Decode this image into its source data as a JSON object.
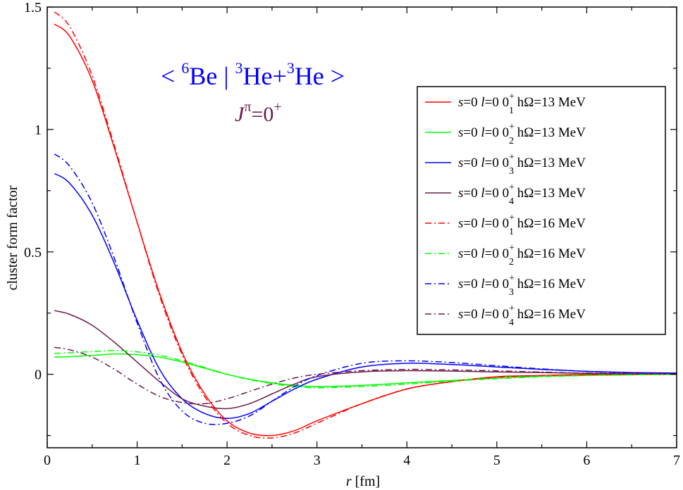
{
  "chart_data": {
    "type": "line",
    "xlabel_var": "r",
    "xlabel_unit": "[fm]",
    "ylabel": "cluster form factor",
    "xlim": [
      0,
      7
    ],
    "ylim": [
      -0.3,
      1.5
    ],
    "x_ticks": [
      "0",
      "1",
      "2",
      "3",
      "4",
      "5",
      "6",
      "7"
    ],
    "y_ticks": [
      {
        "value": 1.5,
        "label": "1.5"
      },
      {
        "value": 1.0,
        "label": "1"
      },
      {
        "value": 0.5,
        "label": "0.5"
      },
      {
        "value": 0.0,
        "label": "0"
      }
    ],
    "grid": false,
    "legend_position": "top-right",
    "annotation": {
      "open": "<",
      "be_mass": "6",
      "be": "Be",
      "bar": "|",
      "he1_mass": "3",
      "he1": "He+",
      "he2_mass": "3",
      "he2": "He",
      "close": ">",
      "j": "J",
      "pi": "π",
      "eq": "=0",
      "plus": "+"
    },
    "x": [
      0.08,
      0.25,
      0.5,
      0.75,
      1.0,
      1.25,
      1.5,
      1.75,
      2.0,
      2.25,
      2.5,
      2.75,
      3.0,
      3.5,
      4.0,
      4.5,
      5.0,
      5.5,
      6.0,
      6.5,
      7.0
    ],
    "series": [
      {
        "legend": {
          "s": "s",
          "s_val": "=0",
          "l": "l",
          "l_val": "=0",
          "state": "0",
          "sup": "+",
          "sub": "1",
          "hw": "hΩ=13 MeV"
        },
        "color": "#ff0000",
        "dash": "solid",
        "values": [
          1.43,
          1.38,
          1.2,
          0.92,
          0.62,
          0.33,
          0.09,
          -0.08,
          -0.19,
          -0.24,
          -0.25,
          -0.23,
          -0.19,
          -0.12,
          -0.06,
          -0.03,
          -0.01,
          -0.005,
          0.0,
          0.0,
          0.0
        ]
      },
      {
        "legend": {
          "s": "s",
          "s_val": "=0",
          "l": "l",
          "l_val": "=0",
          "state": "0",
          "sup": "+",
          "sub": "2",
          "hw": "hΩ=13 MeV"
        },
        "color": "#00ff00",
        "dash": "solid",
        "values": [
          0.07,
          0.072,
          0.077,
          0.083,
          0.08,
          0.07,
          0.05,
          0.025,
          0.0,
          -0.02,
          -0.035,
          -0.045,
          -0.05,
          -0.045,
          -0.035,
          -0.025,
          -0.015,
          -0.008,
          -0.004,
          -0.002,
          0.0
        ]
      },
      {
        "legend": {
          "s": "s",
          "s_val": "=0",
          "l": "l",
          "l_val": "=0",
          "state": "0",
          "sup": "+",
          "sub": "3",
          "hw": "hΩ=13 MeV"
        },
        "color": "#0000ff",
        "dash": "solid",
        "values": [
          0.82,
          0.78,
          0.65,
          0.45,
          0.22,
          0.02,
          -0.1,
          -0.16,
          -0.18,
          -0.16,
          -0.11,
          -0.06,
          -0.02,
          0.03,
          0.045,
          0.04,
          0.03,
          0.02,
          0.012,
          0.007,
          0.005
        ]
      },
      {
        "legend": {
          "s": "s",
          "s_val": "=0",
          "l": "l",
          "l_val": "=0",
          "state": "0",
          "sup": "+",
          "sub": "4",
          "hw": "hΩ=13 MeV"
        },
        "color": "#6b1a4a",
        "dash": "solid",
        "values": [
          0.26,
          0.245,
          0.2,
          0.13,
          0.05,
          -0.03,
          -0.1,
          -0.13,
          -0.14,
          -0.12,
          -0.08,
          -0.04,
          -0.01,
          0.01,
          0.015,
          0.013,
          0.01,
          0.007,
          0.004,
          0.002,
          0.001
        ]
      },
      {
        "legend": {
          "s": "s",
          "s_val": "=0",
          "l": "l",
          "l_val": "=0",
          "state": "0",
          "sup": "+",
          "sub": "1",
          "hw": "hΩ=16 MeV"
        },
        "color": "#ff0000",
        "dash": "dashdot",
        "values": [
          1.48,
          1.42,
          1.22,
          0.93,
          0.62,
          0.32,
          0.08,
          -0.09,
          -0.2,
          -0.25,
          -0.26,
          -0.24,
          -0.2,
          -0.12,
          -0.06,
          -0.03,
          -0.012,
          -0.005,
          -0.002,
          0.0,
          0.0
        ]
      },
      {
        "legend": {
          "s": "s",
          "s_val": "=0",
          "l": "l",
          "l_val": "=0",
          "state": "0",
          "sup": "+",
          "sub": "2",
          "hw": "hΩ=16 MeV"
        },
        "color": "#00ff00",
        "dash": "dashdot",
        "values": [
          0.085,
          0.088,
          0.093,
          0.097,
          0.092,
          0.078,
          0.055,
          0.028,
          0.0,
          -0.022,
          -0.038,
          -0.05,
          -0.055,
          -0.05,
          -0.04,
          -0.028,
          -0.018,
          -0.01,
          -0.005,
          -0.002,
          0.0
        ]
      },
      {
        "legend": {
          "s": "s",
          "s_val": "=0",
          "l": "l",
          "l_val": "=0",
          "state": "0",
          "sup": "+",
          "sub": "3",
          "hw": "hΩ=16 MeV"
        },
        "color": "#0000ff",
        "dash": "dashdot",
        "values": [
          0.9,
          0.85,
          0.7,
          0.47,
          0.21,
          -0.02,
          -0.15,
          -0.2,
          -0.2,
          -0.17,
          -0.11,
          -0.05,
          -0.005,
          0.045,
          0.055,
          0.048,
          0.035,
          0.022,
          0.012,
          0.006,
          0.003
        ]
      },
      {
        "legend": {
          "s": "s",
          "s_val": "=0",
          "l": "l",
          "l_val": "=0",
          "state": "0",
          "sup": "+",
          "sub": "4",
          "hw": "hΩ=16 MeV"
        },
        "color": "#6b1a4a",
        "dash": "dashdot",
        "values": [
          0.11,
          0.1,
          0.07,
          0.02,
          -0.04,
          -0.09,
          -0.115,
          -0.12,
          -0.1,
          -0.07,
          -0.04,
          -0.015,
          0.0,
          0.015,
          0.02,
          0.018,
          0.014,
          0.009,
          0.005,
          0.003,
          0.002
        ]
      }
    ]
  }
}
